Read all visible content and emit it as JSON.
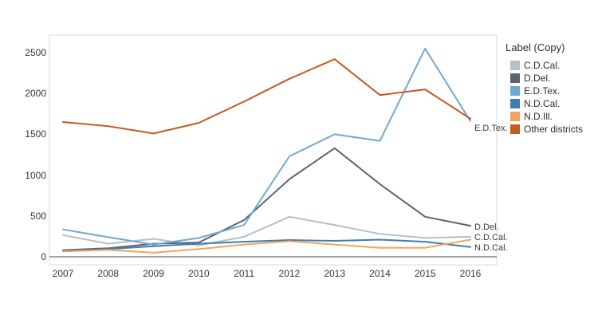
{
  "legend": {
    "title": "Label (Copy)",
    "items": [
      {
        "label": "C.D.Cal.",
        "color": "#b7bfc7"
      },
      {
        "label": "D.Del.",
        "color": "#5d636e"
      },
      {
        "label": "E.D.Tex.",
        "color": "#6fa8d4"
      },
      {
        "label": "N.D.Cal.",
        "color": "#3d7db4"
      },
      {
        "label": "N.D.Ill.",
        "color": "#f2a45f"
      },
      {
        "label": "Other districts",
        "color": "#c25a24"
      }
    ]
  },
  "chart_data": {
    "type": "line",
    "x": [
      2007,
      2008,
      2009,
      2010,
      2011,
      2012,
      2013,
      2014,
      2015,
      2016
    ],
    "x_ticks": [
      "2007",
      "2008",
      "2009",
      "2010",
      "2011",
      "2012",
      "2013",
      "2014",
      "2015",
      "2016"
    ],
    "y_ticks": [
      0,
      500,
      1000,
      1500,
      2000,
      2500
    ],
    "ylim": [
      0,
      2500
    ],
    "grid": false,
    "legend_position": "right",
    "series": [
      {
        "name": "C.D.Cal.",
        "color": "#b7bfc7",
        "values": [
          265,
          160,
          220,
          140,
          245,
          490,
          390,
          280,
          230,
          245
        ],
        "end_label": "C.D.Cal.",
        "end_label_dy": 2
      },
      {
        "name": "D.Del.",
        "color": "#5d636e",
        "values": [
          80,
          105,
          160,
          175,
          450,
          950,
          1330,
          890,
          490,
          380
        ],
        "end_label": "D.Del.",
        "end_label_dy": 3
      },
      {
        "name": "E.D.Tex.",
        "color": "#6fa8d4",
        "values": [
          335,
          240,
          150,
          230,
          390,
          1230,
          1500,
          1420,
          2550,
          1660
        ],
        "end_label": "E.D.Tex.",
        "end_label_dy": 10
      },
      {
        "name": "N.D.Cal.",
        "color": "#3d7db4",
        "values": [
          70,
          95,
          130,
          160,
          185,
          205,
          195,
          210,
          185,
          120
        ],
        "end_label": "N.D.Cal.",
        "end_label_dy": 2
      },
      {
        "name": "N.D.Ill.",
        "color": "#f2a45f",
        "values": [
          65,
          85,
          50,
          95,
          150,
          190,
          150,
          110,
          110,
          210
        ],
        "end_label": null,
        "end_label_dy": 0
      },
      {
        "name": "Other districts",
        "color": "#c25a24",
        "values": [
          1650,
          1600,
          1510,
          1640,
          1900,
          2180,
          2420,
          1980,
          2050,
          1690
        ],
        "end_label": null,
        "end_label_dy": 0
      }
    ]
  }
}
